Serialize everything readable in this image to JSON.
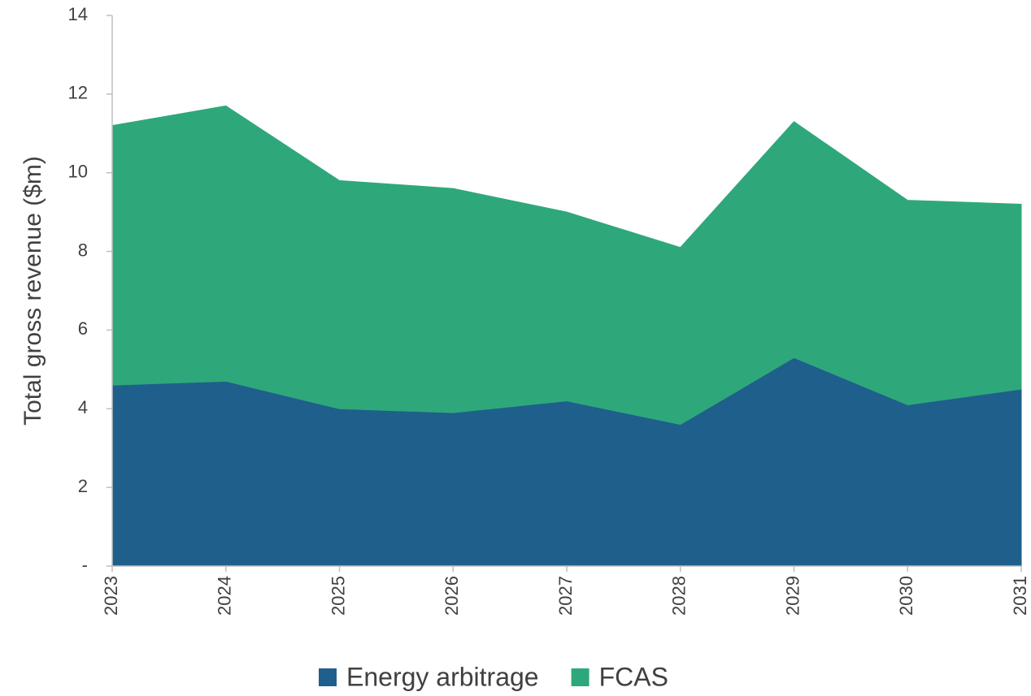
{
  "chart_data": {
    "type": "stacked-area",
    "y_label": "Total gross revenue ($m)",
    "categories": [
      "2023",
      "2024",
      "2025",
      "2026",
      "2027",
      "2028",
      "2029",
      "2030",
      "2031"
    ],
    "series": [
      {
        "name": "Energy arbitrage",
        "color": "#1f5f8b",
        "values": [
          4.6,
          4.7,
          4.0,
          3.9,
          4.2,
          3.6,
          5.3,
          4.1,
          4.5
        ]
      },
      {
        "name": "FCAS",
        "color": "#2ea87a",
        "values": [
          6.6,
          7.0,
          5.8,
          5.7,
          4.8,
          4.5,
          6.0,
          5.2,
          4.7
        ]
      }
    ],
    "ylim": [
      0,
      14
    ],
    "yticks": [
      {
        "value": 0,
        "label": "-"
      },
      2,
      4,
      6,
      8,
      10,
      12,
      14
    ],
    "legend": "bottom"
  }
}
